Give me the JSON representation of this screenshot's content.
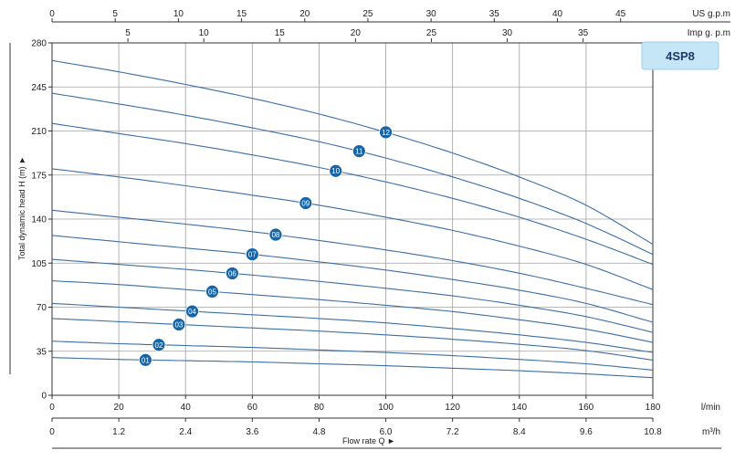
{
  "chart_data": {
    "type": "line",
    "title": "",
    "model_label": "4SP8",
    "colors": {
      "curve": "#3d6ea5",
      "badge": "#1565a8",
      "model_box": "#c5e6f6",
      "grid": "#a0a0a0"
    },
    "xlabel": "Flow rate Q ►",
    "ylabel": "Total dynamic head H (m) ►",
    "x_unit": "l/min",
    "xlim": [
      0,
      180
    ],
    "ylim": [
      0,
      280
    ],
    "grid": true,
    "x_ticks": [
      "0",
      "20",
      "40",
      "60",
      "80",
      "100",
      "120",
      "140",
      "160",
      "180"
    ],
    "y_ticks": [
      "0",
      "35",
      "70",
      "105",
      "140",
      "175",
      "210",
      "245",
      "280"
    ],
    "secondary_axes": {
      "m3h": {
        "unit": "m³/h",
        "ticks": [
          {
            "label": "0",
            "value": 0
          },
          {
            "label": "1.2",
            "value": 1.2
          },
          {
            "label": "2.4",
            "value": 2.4
          },
          {
            "label": "3.6",
            "value": 3.6
          },
          {
            "label": "4.8",
            "value": 4.8
          },
          {
            "label": "6.0",
            "value": 6.0
          },
          {
            "label": "7.2",
            "value": 7.2
          },
          {
            "label": "8.4",
            "value": 8.4
          },
          {
            "label": "9.6",
            "value": 9.6
          },
          {
            "label": "10.8",
            "value": 10.8
          }
        ]
      },
      "usgpm": {
        "unit": "US g.p.m",
        "ticks": [
          {
            "label": "0",
            "value": 0
          },
          {
            "label": "5",
            "value": 5
          },
          {
            "label": "10",
            "value": 10
          },
          {
            "label": "15",
            "value": 15
          },
          {
            "label": "20",
            "value": 20
          },
          {
            "label": "25",
            "value": 25
          },
          {
            "label": "30",
            "value": 30
          },
          {
            "label": "35",
            "value": 35
          },
          {
            "label": "40",
            "value": 40
          },
          {
            "label": "45",
            "value": 45
          }
        ]
      },
      "impgpm": {
        "unit": "Imp g. p.m",
        "ticks": [
          {
            "label": "5",
            "value": 5
          },
          {
            "label": "10",
            "value": 10
          },
          {
            "label": "15",
            "value": 15
          },
          {
            "label": "20",
            "value": 20
          },
          {
            "label": "25",
            "value": 25
          },
          {
            "label": "30",
            "value": 30
          },
          {
            "label": "35",
            "value": 35
          }
        ]
      }
    },
    "series": [
      {
        "name": "01",
        "x": [
          0,
          20,
          40,
          60,
          80,
          100,
          120,
          140,
          160,
          180
        ],
        "y": [
          30,
          28.5,
          27.5,
          26.5,
          25,
          23.5,
          21.5,
          19.5,
          17,
          14
        ],
        "label_x": 28
      },
      {
        "name": "02",
        "x": [
          0,
          20,
          40,
          60,
          80,
          100,
          120,
          140,
          160,
          180
        ],
        "y": [
          43,
          41,
          39.5,
          38,
          36,
          34,
          31.5,
          28.5,
          25,
          20
        ],
        "label_x": 32
      },
      {
        "name": "03",
        "x": [
          0,
          20,
          40,
          60,
          80,
          100,
          120,
          140,
          160,
          180
        ],
        "y": [
          61,
          58.5,
          56,
          53.5,
          51,
          48,
          44.5,
          40.5,
          35.5,
          28
        ],
        "label_x": 38
      },
      {
        "name": "04",
        "x": [
          0,
          20,
          40,
          60,
          80,
          100,
          120,
          140,
          160,
          180
        ],
        "y": [
          73,
          70,
          67,
          64,
          61,
          57.5,
          53,
          48,
          42,
          34
        ],
        "label_x": 42
      },
      {
        "name": "05",
        "x": [
          0,
          20,
          40,
          60,
          80,
          100,
          120,
          140,
          160,
          180
        ],
        "y": [
          91,
          88,
          84,
          80,
          76,
          71.5,
          66.5,
          60,
          52.5,
          42
        ],
        "label_x": 48
      },
      {
        "name": "06",
        "x": [
          0,
          20,
          40,
          60,
          80,
          100,
          120,
          140,
          160,
          180
        ],
        "y": [
          108,
          104,
          100,
          95.5,
          90.5,
          85,
          79,
          71.5,
          62.5,
          50
        ],
        "label_x": 54
      },
      {
        "name": "07",
        "x": [
          0,
          20,
          40,
          60,
          80,
          100,
          120,
          140,
          160,
          180
        ],
        "y": [
          127,
          122,
          117,
          112,
          106,
          99.5,
          92,
          83.5,
          73,
          58
        ],
        "label_x": 60
      },
      {
        "name": "08",
        "x": [
          0,
          20,
          40,
          60,
          80,
          100,
          120,
          140,
          160,
          180
        ],
        "y": [
          147,
          141.5,
          136,
          130,
          123,
          115.5,
          107,
          97,
          85,
          72
        ],
        "label_x": 67
      },
      {
        "name": "09",
        "x": [
          0,
          20,
          40,
          60,
          80,
          100,
          120,
          140,
          160,
          180
        ],
        "y": [
          180,
          173.5,
          166.5,
          159,
          151,
          141.5,
          131,
          118.5,
          104,
          84
        ],
        "label_x": 76
      },
      {
        "name": "10",
        "x": [
          0,
          20,
          40,
          60,
          80,
          100,
          120,
          140,
          160,
          180
        ],
        "y": [
          216,
          208,
          200,
          191,
          181,
          169.5,
          156.5,
          141.5,
          124,
          104
        ],
        "label_x": 85
      },
      {
        "name": "11",
        "x": [
          0,
          20,
          40,
          60,
          80,
          100,
          120,
          140,
          160,
          180
        ],
        "y": [
          240,
          231.5,
          222.5,
          212.5,
          201.5,
          188.5,
          173.5,
          156.5,
          136.5,
          112
        ],
        "label_x": 92
      },
      {
        "name": "12",
        "x": [
          0,
          20,
          40,
          60,
          80,
          100,
          120,
          140,
          160,
          180
        ],
        "y": [
          266,
          257,
          247,
          236,
          223.5,
          209,
          192.5,
          173.5,
          151,
          120
        ],
        "label_x": 100
      }
    ]
  }
}
